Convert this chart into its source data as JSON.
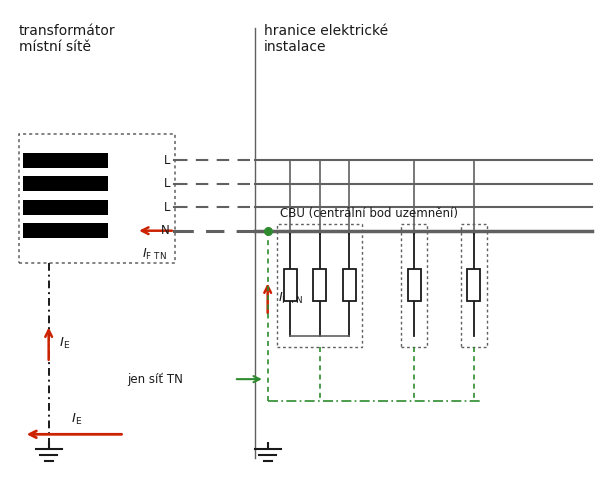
{
  "bg_color": "#ffffff",
  "figsize": [
    6.04,
    4.79
  ],
  "dpi": 100,
  "text_transformer": "transformátor\nmístní sítě",
  "text_hranice": "hranice elektrické\ninstalace",
  "text_cbu": "CBU (centrální bod uzemnění)",
  "text_jen_sit": "jen síť TN",
  "color_black": "#1a1a1a",
  "color_gray": "#606060",
  "color_red": "#cc2200",
  "color_green": "#2e8b2e",
  "color_dotted_box": "#606060"
}
